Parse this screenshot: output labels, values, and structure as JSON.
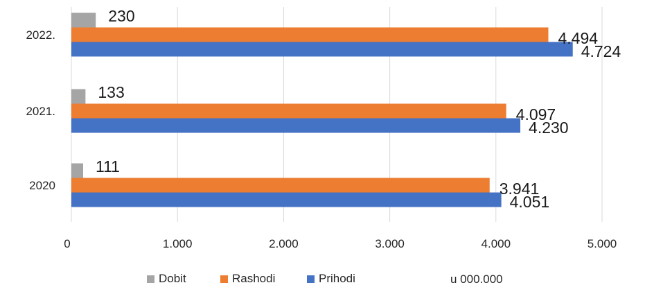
{
  "chart_data": {
    "type": "bar",
    "orientation": "horizontal",
    "categories": [
      "2022.",
      "2021.",
      "2020"
    ],
    "series": [
      {
        "name": "Dobit",
        "color": "#a5a5a5",
        "values": [
          230,
          133,
          111
        ],
        "labels": [
          "230",
          "133",
          "111"
        ]
      },
      {
        "name": "Rashodi",
        "color": "#ed7d31",
        "values": [
          4494,
          4097,
          3941
        ],
        "labels": [
          "4.494",
          "4.097",
          "3.941"
        ]
      },
      {
        "name": "Prihodi",
        "color": "#4472c4",
        "values": [
          4724,
          4230,
          4051
        ],
        "labels": [
          "4.724",
          "4.230",
          "4.051"
        ]
      }
    ],
    "xlim": [
      0,
      5000
    ],
    "xticks": [
      0,
      1000,
      2000,
      3000,
      4000,
      5000
    ],
    "xtick_labels": [
      "0",
      "1.000",
      "2.000",
      "3.000",
      "4.000",
      "5.000"
    ],
    "grid": true,
    "legend_position": "bottom",
    "unit_note": "u 000.000"
  }
}
